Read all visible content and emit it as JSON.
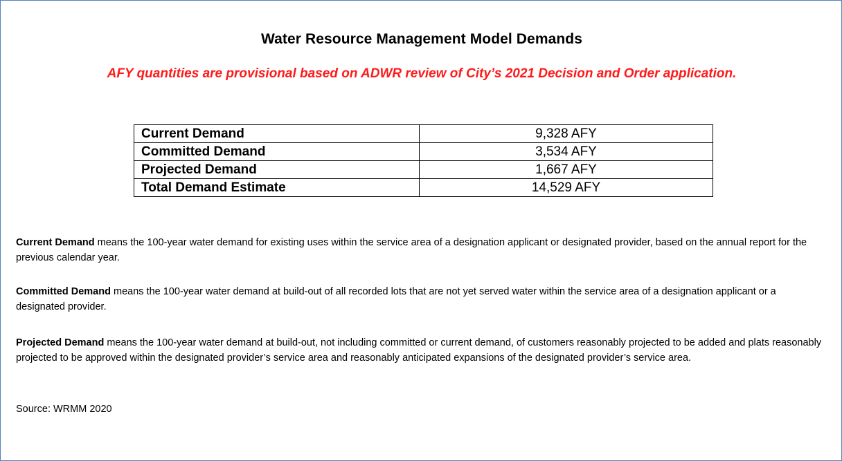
{
  "title": "Water Resource Management Model Demands",
  "subtitle": "AFY quantities are provisional based on ADWR review of City’s 2021 Decision and Order application.",
  "table": {
    "rows": [
      [
        "Current Demand",
        "9,328 AFY"
      ],
      [
        "Committed Demand",
        "3,534 AFY"
      ],
      [
        "Projected Demand",
        "1,667 AFY"
      ],
      [
        "Total Demand Estimate",
        "14,529 AFY"
      ]
    ]
  },
  "definitions": [
    {
      "term": "Current Demand",
      "text": " means the 100-year water demand for existing uses within the service area of a designation applicant or designated provider, based on the annual report for the previous calendar year."
    },
    {
      "term": "Committed Demand",
      "text": " means the 100-year water demand at build-out of all recorded lots that are not yet served water within the service area of a designation applicant or a designated provider."
    },
    {
      "term": "Projected Demand",
      "text": " means the 100-year water demand at build-out, not including committed or current demand, of customers reasonably projected to be added and plats reasonably projected to be approved within the designated provider’s service area and reasonably anticipated expansions of the designated provider’s service area."
    }
  ],
  "source": "Source:  WRMM 2020"
}
